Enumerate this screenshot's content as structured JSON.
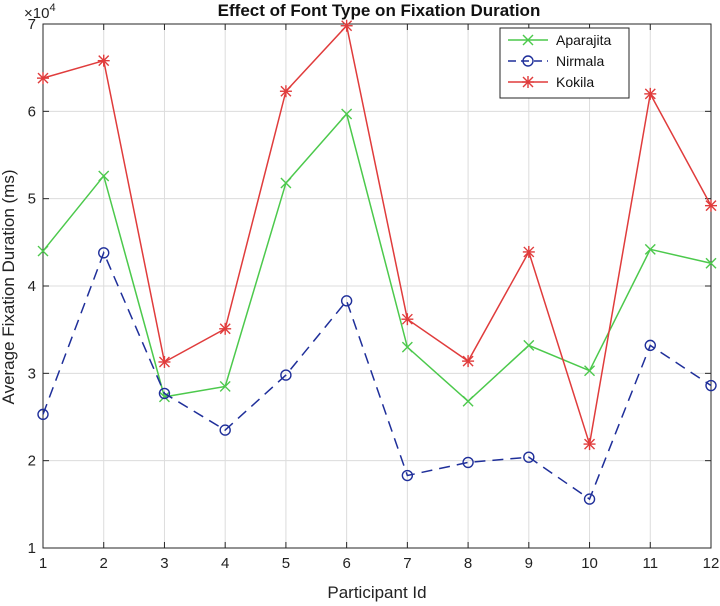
{
  "chart_data": {
    "type": "line",
    "title": "Effect of Font Type on Fixation Duration",
    "xlabel": "Participant Id",
    "ylabel": "Average Fixation Duration (ms)",
    "y_exponent_label": "×10",
    "y_exponent_power": "4",
    "x": [
      1,
      2,
      3,
      4,
      5,
      6,
      7,
      8,
      9,
      10,
      11,
      12
    ],
    "xlim": [
      1,
      12
    ],
    "ylim": [
      10000,
      70000
    ],
    "yticks": [
      10000,
      20000,
      30000,
      40000,
      50000,
      60000,
      70000
    ],
    "ytick_labels": [
      "1",
      "2",
      "3",
      "4",
      "5",
      "6",
      "7"
    ],
    "grid": true,
    "legend_position": "top-right",
    "series": [
      {
        "name": "Aparajita",
        "color": "#4cc94c",
        "line_style": "solid",
        "marker": "x",
        "values": [
          44000,
          52600,
          27300,
          28500,
          51800,
          59700,
          33000,
          26800,
          33200,
          30300,
          44200,
          42600
        ]
      },
      {
        "name": "Nirmala",
        "color": "#1f2f9a",
        "line_style": "dashed",
        "marker": "circle",
        "values": [
          25300,
          43800,
          27700,
          23500,
          29800,
          38300,
          18300,
          19800,
          20400,
          15600,
          33200,
          28600
        ]
      },
      {
        "name": "Kokila",
        "color": "#e03c3c",
        "line_style": "solid",
        "marker": "asterisk",
        "values": [
          63800,
          65800,
          31300,
          35100,
          62300,
          69800,
          36200,
          31400,
          43900,
          21900,
          62000,
          49200
        ]
      }
    ]
  }
}
